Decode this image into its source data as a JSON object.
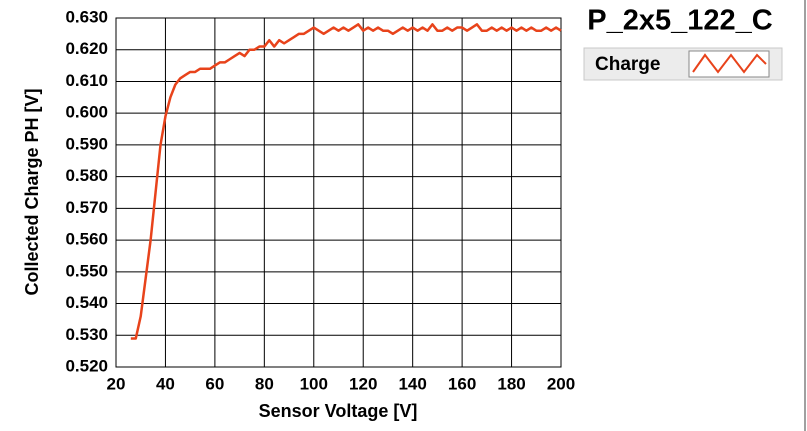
{
  "chart_data": {
    "type": "line",
    "title": "P_2x5_122_C",
    "x_label": "Sensor Voltage [V]",
    "y_label": "Collected Charge PH [V]",
    "x": [
      26,
      28,
      30,
      32,
      34,
      36,
      38,
      40,
      42,
      44,
      46,
      48,
      50,
      52,
      54,
      56,
      58,
      60,
      62,
      64,
      66,
      68,
      70,
      72,
      74,
      76,
      78,
      80,
      82,
      84,
      86,
      88,
      90,
      92,
      94,
      96,
      98,
      100,
      102,
      104,
      106,
      108,
      110,
      112,
      114,
      116,
      118,
      120,
      122,
      124,
      126,
      128,
      130,
      132,
      134,
      136,
      138,
      140,
      142,
      144,
      146,
      148,
      150,
      152,
      154,
      156,
      158,
      160,
      162,
      164,
      166,
      168,
      170,
      172,
      174,
      176,
      178,
      180,
      182,
      184,
      186,
      188,
      190,
      192,
      194,
      196,
      198,
      200
    ],
    "series": [
      {
        "name": "Charge",
        "color": "#e8431b",
        "values": [
          0.529,
          0.529,
          0.536,
          0.548,
          0.56,
          0.575,
          0.59,
          0.599,
          0.605,
          0.609,
          0.611,
          0.612,
          0.613,
          0.613,
          0.614,
          0.614,
          0.614,
          0.615,
          0.616,
          0.616,
          0.617,
          0.618,
          0.619,
          0.618,
          0.62,
          0.62,
          0.621,
          0.621,
          0.623,
          0.621,
          0.623,
          0.622,
          0.623,
          0.624,
          0.625,
          0.625,
          0.626,
          0.627,
          0.626,
          0.625,
          0.626,
          0.627,
          0.626,
          0.627,
          0.626,
          0.627,
          0.628,
          0.626,
          0.627,
          0.626,
          0.627,
          0.626,
          0.626,
          0.625,
          0.626,
          0.627,
          0.626,
          0.627,
          0.626,
          0.627,
          0.626,
          0.628,
          0.626,
          0.626,
          0.627,
          0.626,
          0.627,
          0.627,
          0.626,
          0.627,
          0.628,
          0.626,
          0.626,
          0.627,
          0.626,
          0.627,
          0.626,
          0.627,
          0.626,
          0.627,
          0.626,
          0.627,
          0.626,
          0.626,
          0.627,
          0.626,
          0.627,
          0.626
        ]
      }
    ],
    "xlim": [
      20,
      200
    ],
    "xticks": [
      20,
      40,
      60,
      80,
      100,
      120,
      140,
      160,
      180,
      200
    ],
    "ylim": [
      0.52,
      0.63
    ],
    "yticks": [
      {
        "value": 0.52,
        "label": "0.520"
      },
      {
        "value": 0.53,
        "label": "0.530"
      },
      {
        "value": 0.54,
        "label": "0.540"
      },
      {
        "value": 0.55,
        "label": "0.550"
      },
      {
        "value": 0.56,
        "label": "0.560"
      },
      {
        "value": 0.57,
        "label": "0.570"
      },
      {
        "value": 0.58,
        "label": "0.580"
      },
      {
        "value": 0.59,
        "label": "0.590"
      },
      {
        "value": 0.6,
        "label": "0.600"
      },
      {
        "value": 0.61,
        "label": "0.610"
      },
      {
        "value": 0.62,
        "label": "0.620"
      },
      {
        "value": 0.63,
        "label": "0.630"
      }
    ],
    "grid": true
  }
}
